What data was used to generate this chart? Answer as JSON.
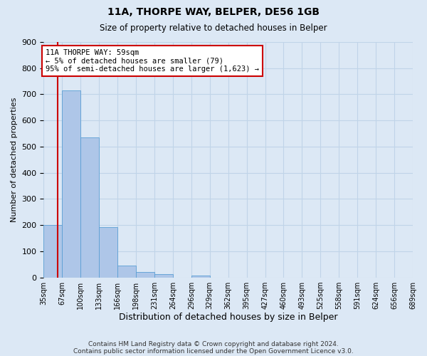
{
  "title": "11A, THORPE WAY, BELPER, DE56 1GB",
  "subtitle": "Size of property relative to detached houses in Belper",
  "xlabel": "Distribution of detached houses by size in Belper",
  "ylabel": "Number of detached properties",
  "footer_line1": "Contains HM Land Registry data © Crown copyright and database right 2024.",
  "footer_line2": "Contains public sector information licensed under the Open Government Licence v3.0.",
  "bins": [
    "35sqm",
    "67sqm",
    "100sqm",
    "133sqm",
    "166sqm",
    "198sqm",
    "231sqm",
    "264sqm",
    "296sqm",
    "329sqm",
    "362sqm",
    "395sqm",
    "427sqm",
    "460sqm",
    "493sqm",
    "525sqm",
    "558sqm",
    "591sqm",
    "624sqm",
    "656sqm",
    "689sqm"
  ],
  "values": [
    200,
    714,
    536,
    193,
    46,
    20,
    13,
    0,
    8,
    0,
    0,
    0,
    0,
    0,
    0,
    0,
    0,
    0,
    0,
    0
  ],
  "bar_color": "#aec6e8",
  "bar_edge_color": "#5a9fd4",
  "grid_color": "#c0d4e8",
  "background_color": "#dce8f5",
  "marker_line_color": "#cc0000",
  "annotation_line1": "11A THORPE WAY: 59sqm",
  "annotation_line2": "← 5% of detached houses are smaller (79)",
  "annotation_line3": "95% of semi-detached houses are larger (1,623) →",
  "annotation_box_color": "#cc0000",
  "ylim": [
    0,
    900
  ],
  "yticks": [
    0,
    100,
    200,
    300,
    400,
    500,
    600,
    700,
    800,
    900
  ]
}
